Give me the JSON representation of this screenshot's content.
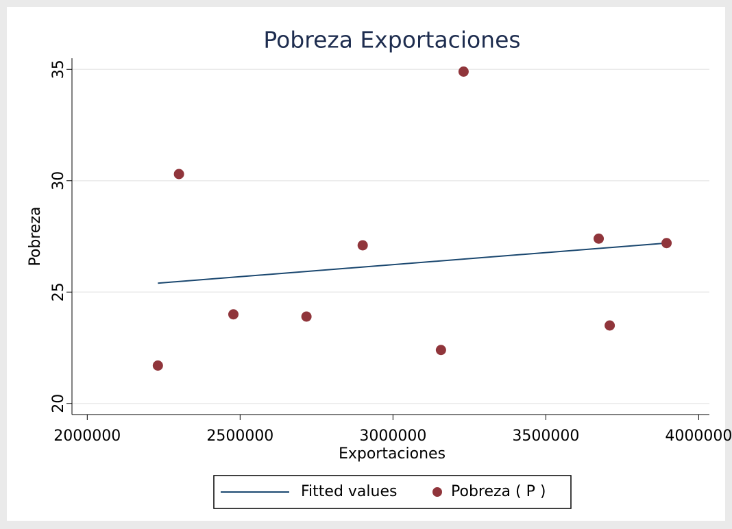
{
  "chart_data": {
    "type": "scatter",
    "title": "Pobreza Exportaciones",
    "x_label": "Exportaciones",
    "y_label": "Pobreza",
    "series": [
      {
        "name": "Fitted values",
        "type": "line",
        "color": "#1a476f",
        "x": [
          2231000,
          3895000
        ],
        "values": [
          25.4,
          27.2
        ]
      },
      {
        "name": "Pobreza ( P )",
        "type": "scatter",
        "color": "#90353b",
        "x": [
          2231000,
          2300000,
          2478000,
          2717000,
          2901000,
          3157000,
          3231000,
          3673000,
          3709000,
          3895000
        ],
        "values": [
          21.7,
          30.3,
          24.0,
          23.9,
          27.1,
          22.4,
          34.9,
          27.4,
          23.5,
          27.2
        ]
      }
    ],
    "xlim": [
      1950000,
      4035000
    ],
    "xticks": [
      2000000,
      2500000,
      3000000,
      3500000,
      4000000
    ],
    "ylim": [
      19.5,
      35.5
    ],
    "yticks": [
      20,
      25,
      30,
      35
    ],
    "grid": true,
    "legend": "bottom"
  }
}
